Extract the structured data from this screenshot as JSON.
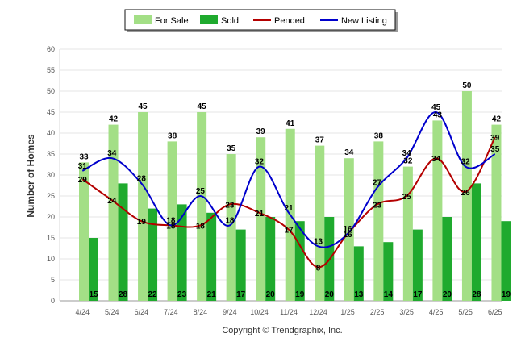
{
  "chart_data": {
    "type": "bar",
    "categories": [
      "4/24",
      "5/24",
      "6/24",
      "7/24",
      "8/24",
      "9/24",
      "10/24",
      "11/24",
      "12/24",
      "1/25",
      "2/25",
      "3/25",
      "4/25",
      "5/25",
      "6/25"
    ],
    "series": [
      {
        "name": "For Sale",
        "type": "bar",
        "color": "#a3df86",
        "values": [
          33,
          42,
          45,
          38,
          45,
          35,
          39,
          41,
          37,
          34,
          38,
          32,
          43,
          50,
          42
        ]
      },
      {
        "name": "Sold",
        "type": "bar",
        "color": "#1faa2e",
        "values": [
          15,
          28,
          22,
          23,
          21,
          17,
          20,
          19,
          20,
          13,
          14,
          17,
          20,
          28,
          19
        ]
      },
      {
        "name": "Pended",
        "type": "line",
        "color": "#b40000",
        "values": [
          29,
          24,
          19,
          18,
          18,
          23,
          21,
          17,
          8,
          16,
          23,
          25,
          34,
          26,
          39
        ]
      },
      {
        "name": "New Listing",
        "type": "line",
        "color": "#0000cc",
        "values": [
          31,
          34,
          28,
          18,
          25,
          18,
          32,
          21,
          13,
          16,
          27,
          34,
          45,
          32,
          35
        ]
      }
    ],
    "ylabel": "Number of Homes",
    "xlabel": "",
    "ylim": [
      0,
      60
    ],
    "yticks": [
      0,
      5,
      10,
      15,
      20,
      25,
      30,
      35,
      40,
      45,
      50,
      55,
      60
    ],
    "grid": true,
    "legend": "top-center"
  },
  "footer": "Copyright © Trendgraphix, Inc."
}
